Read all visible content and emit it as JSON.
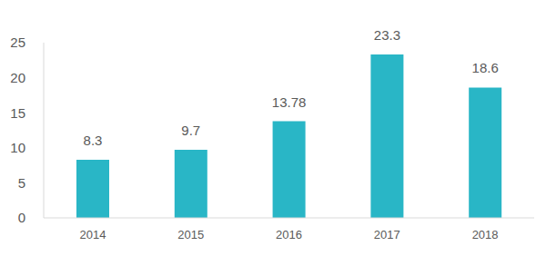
{
  "chart_data": {
    "type": "bar",
    "categories": [
      "2014",
      "2015",
      "2016",
      "2017",
      "2018"
    ],
    "values": [
      8.3,
      9.7,
      13.78,
      23.3,
      18.6
    ],
    "color": "#29b6c6",
    "ylim": [
      0,
      25
    ],
    "yticks": [
      0,
      5,
      10,
      15,
      20,
      25
    ],
    "grid": false,
    "data_labels": true
  }
}
